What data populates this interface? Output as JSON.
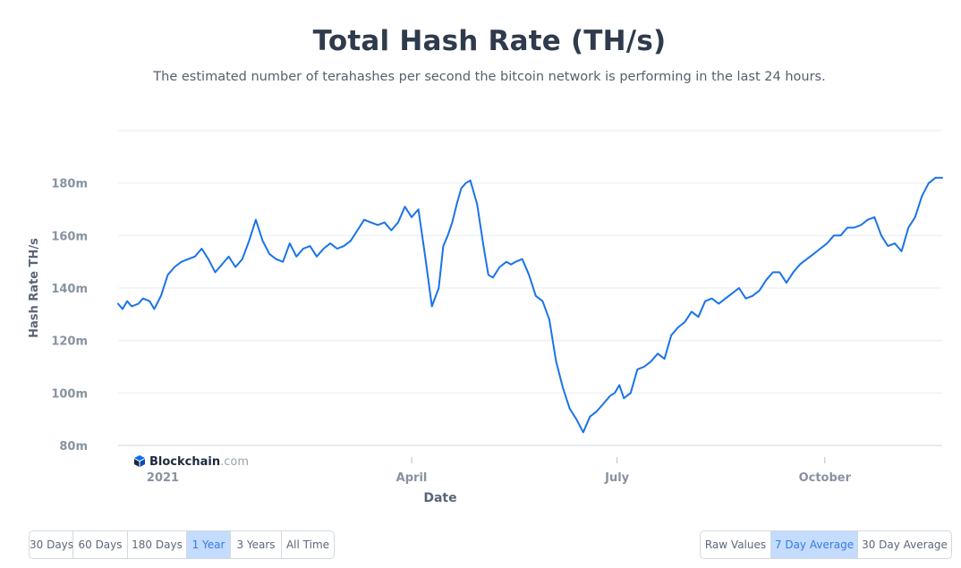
{
  "chart_data": {
    "type": "line",
    "title": "Total Hash Rate (TH/s)",
    "subtitle": "The estimated number of terahashes per second the bitcoin network is performing in the last 24 hours.",
    "xlabel": "Date",
    "ylabel": "Hash Rate TH/s",
    "ylim": [
      80000000,
      200000000
    ],
    "xlim": [
      "2020-11-22",
      "2021-11-22"
    ],
    "yticks": [
      80000000,
      100000000,
      120000000,
      140000000,
      160000000,
      180000000
    ],
    "ytick_labels": [
      "80m",
      "100m",
      "120m",
      "140m",
      "160m",
      "180m"
    ],
    "xticks": [
      "2021-01-01",
      "2021-04-01",
      "2021-07-01",
      "2021-10-01"
    ],
    "xtick_labels": [
      "2021",
      "April",
      "July",
      "October"
    ],
    "grid": true,
    "legend": "none",
    "line_color": "#1a73e8",
    "series": [
      {
        "x": [
          "2020-11-22",
          "2020-11-24",
          "2020-11-26",
          "2020-11-28",
          "2020-12-01",
          "2020-12-03",
          "2020-12-06",
          "2020-12-08",
          "2020-12-11",
          "2020-12-14",
          "2020-12-17",
          "2020-12-20",
          "2020-12-23",
          "2020-12-26",
          "2020-12-29",
          "2021-01-01",
          "2021-01-04",
          "2021-01-07",
          "2021-01-10",
          "2021-01-13",
          "2021-01-16",
          "2021-01-19",
          "2021-01-22",
          "2021-01-25",
          "2021-01-28",
          "2021-01-31",
          "2021-02-03",
          "2021-02-06",
          "2021-02-09",
          "2021-02-12",
          "2021-02-15",
          "2021-02-18",
          "2021-02-21",
          "2021-02-24",
          "2021-02-27",
          "2021-03-02",
          "2021-03-05",
          "2021-03-08",
          "2021-03-11",
          "2021-03-14",
          "2021-03-17",
          "2021-03-20",
          "2021-03-23",
          "2021-03-26",
          "2021-03-29",
          "2021-04-01",
          "2021-04-04",
          "2021-04-07",
          "2021-04-10",
          "2021-04-13",
          "2021-04-15",
          "2021-04-17",
          "2021-04-19",
          "2021-04-21",
          "2021-04-23",
          "2021-04-25",
          "2021-04-27",
          "2021-04-30",
          "2021-05-03",
          "2021-05-05",
          "2021-05-07",
          "2021-05-10",
          "2021-05-13",
          "2021-05-15",
          "2021-05-17",
          "2021-05-20",
          "2021-05-23",
          "2021-05-26",
          "2021-05-29",
          "2021-06-01",
          "2021-06-04",
          "2021-06-07",
          "2021-06-10",
          "2021-06-13",
          "2021-06-16",
          "2021-06-19",
          "2021-06-22",
          "2021-06-25",
          "2021-06-28",
          "2021-06-30",
          "2021-07-02",
          "2021-07-04",
          "2021-07-07",
          "2021-07-10",
          "2021-07-13",
          "2021-07-16",
          "2021-07-19",
          "2021-07-22",
          "2021-07-25",
          "2021-07-28",
          "2021-07-31",
          "2021-08-03",
          "2021-08-06",
          "2021-08-09",
          "2021-08-12",
          "2021-08-15",
          "2021-08-18",
          "2021-08-21",
          "2021-08-24",
          "2021-08-27",
          "2021-08-30",
          "2021-09-02",
          "2021-09-05",
          "2021-09-08",
          "2021-09-11",
          "2021-09-14",
          "2021-09-17",
          "2021-09-20",
          "2021-09-23",
          "2021-09-26",
          "2021-09-29",
          "2021-10-02",
          "2021-10-05",
          "2021-10-08",
          "2021-10-11",
          "2021-10-14",
          "2021-10-17",
          "2021-10-20",
          "2021-10-23",
          "2021-10-26",
          "2021-10-29",
          "2021-11-01",
          "2021-11-04",
          "2021-11-07",
          "2021-11-10",
          "2021-11-13",
          "2021-11-16",
          "2021-11-19",
          "2021-11-22"
        ],
        "values": [
          134000000,
          132000000,
          135000000,
          133000000,
          134000000,
          136000000,
          135000000,
          132000000,
          137000000,
          145000000,
          148000000,
          150000000,
          151000000,
          152000000,
          155000000,
          151000000,
          146000000,
          149000000,
          152000000,
          148000000,
          151000000,
          158000000,
          166000000,
          158000000,
          153000000,
          151000000,
          150000000,
          157000000,
          152000000,
          155000000,
          156000000,
          152000000,
          155000000,
          157000000,
          155000000,
          156000000,
          158000000,
          162000000,
          166000000,
          165000000,
          164000000,
          165000000,
          162000000,
          165000000,
          171000000,
          167000000,
          170000000,
          152000000,
          133000000,
          140000000,
          156000000,
          160000000,
          165000000,
          172000000,
          178000000,
          180000000,
          181000000,
          172000000,
          155000000,
          145000000,
          144000000,
          148000000,
          150000000,
          149000000,
          150000000,
          151000000,
          145000000,
          137000000,
          135000000,
          128000000,
          112000000,
          102000000,
          94000000,
          90000000,
          85000000,
          91000000,
          93000000,
          96000000,
          99000000,
          100000000,
          103000000,
          98000000,
          100000000,
          109000000,
          110000000,
          112000000,
          115000000,
          113000000,
          122000000,
          125000000,
          127000000,
          131000000,
          129000000,
          135000000,
          136000000,
          134000000,
          136000000,
          138000000,
          140000000,
          136000000,
          137000000,
          139000000,
          143000000,
          146000000,
          146000000,
          142000000,
          146000000,
          149000000,
          151000000,
          153000000,
          155000000,
          157000000,
          160000000,
          160000000,
          163000000,
          163000000,
          164000000,
          166000000,
          167000000,
          160000000,
          156000000,
          157000000,
          154000000,
          163000000,
          167000000,
          175000000,
          180000000,
          182000000,
          182000000
        ]
      }
    ]
  },
  "watermark": {
    "brand": "Blockchain",
    "suffix": ".com"
  },
  "controls": {
    "periods": [
      "30 Days",
      "60 Days",
      "180 Days",
      "1 Year",
      "3 Years",
      "All Time"
    ],
    "period_selected": "1 Year",
    "averages": [
      "Raw Values",
      "7 Day Average",
      "30 Day Average"
    ],
    "average_selected": "7 Day Average"
  },
  "colors": {
    "line": "#1a73e8",
    "active_button_bg": "#c3dcff",
    "active_button_text": "#3a7be0",
    "title": "#2f3b4c"
  }
}
